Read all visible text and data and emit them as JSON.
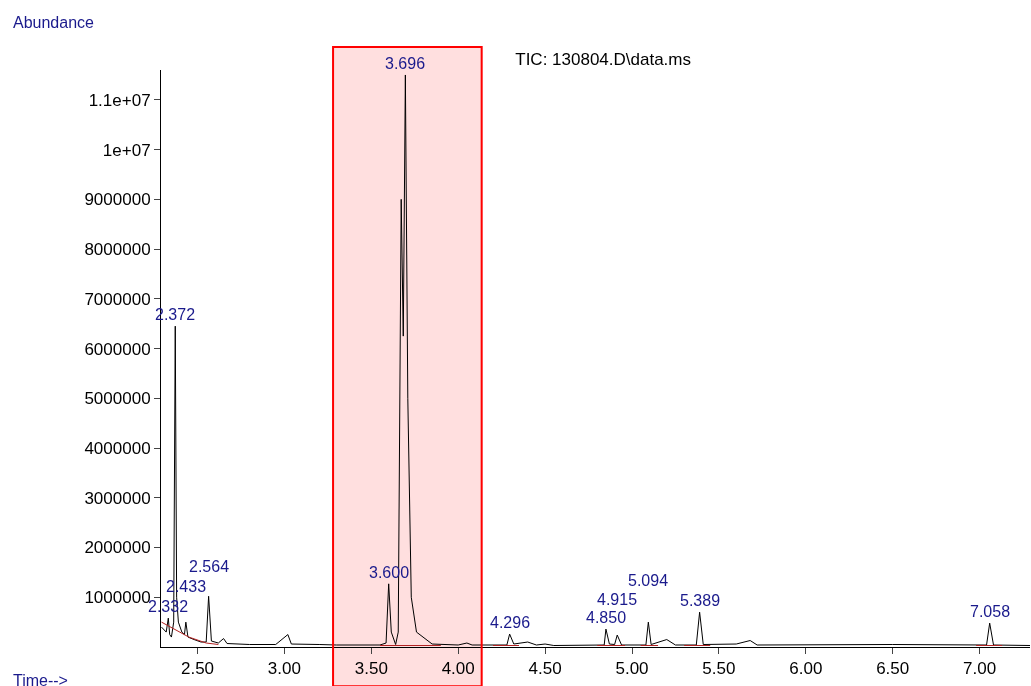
{
  "chart_data": {
    "type": "line",
    "title": "TIC: 130804.D\\data.ms",
    "xlabel": "Time-->",
    "ylabel": "Abundance",
    "series": [
      {
        "color": "#000000",
        "x": [
          2.293,
          2.32,
          2.332,
          2.34,
          2.35,
          2.363,
          2.372,
          2.38,
          2.39,
          2.41,
          2.425,
          2.433,
          2.445,
          2.48,
          2.52,
          2.55,
          2.564,
          2.58,
          2.62,
          2.65,
          2.67,
          2.8,
          2.95,
          3.02,
          3.04,
          3.2,
          3.3,
          3.55,
          3.585,
          3.6,
          3.615,
          3.64,
          3.655,
          3.672,
          3.684,
          3.696,
          3.71,
          3.73,
          3.76,
          3.85,
          4.0,
          4.05,
          4.08,
          4.28,
          4.296,
          4.32,
          4.4,
          4.45,
          4.5,
          4.55,
          4.84,
          4.85,
          4.87,
          4.9,
          4.915,
          4.94,
          5.08,
          5.094,
          5.11,
          5.2,
          5.25,
          5.37,
          5.389,
          5.41,
          5.6,
          5.68,
          5.72,
          6.5,
          7.04,
          7.058,
          7.08,
          7.29
        ],
        "values": [
          400000,
          300000,
          580000,
          250000,
          200000,
          500000,
          6450000,
          1000000,
          500000,
          300000,
          250000,
          500000,
          200000,
          150000,
          100000,
          100000,
          1020000,
          120000,
          80000,
          170000,
          70000,
          50000,
          50000,
          250000,
          60000,
          50000,
          40000,
          40000,
          80000,
          1270000,
          300000,
          50000,
          300000,
          9000000,
          6250000,
          11500000,
          5000000,
          1000000,
          300000,
          60000,
          40000,
          80000,
          40000,
          40000,
          260000,
          60000,
          100000,
          40000,
          60000,
          30000,
          40000,
          360000,
          60000,
          50000,
          240000,
          40000,
          40000,
          500000,
          50000,
          150000,
          40000,
          40000,
          700000,
          50000,
          60000,
          130000,
          40000,
          50000,
          40000,
          480000,
          40000,
          30000
        ]
      },
      {
        "color": "#b22222",
        "x": [
          2.293,
          2.45,
          2.55,
          2.62,
          3.0,
          3.55,
          3.9,
          4.05,
          4.2,
          4.35,
          4.6,
          4.8,
          4.96,
          5.0,
          5.05,
          5.15,
          5.2,
          5.3,
          5.45,
          6.0,
          6.98,
          7.13
        ],
        "values": [
          500000,
          200000,
          80000,
          50000,
          null,
          30000,
          30000,
          null,
          30000,
          30000,
          null,
          30000,
          30000,
          null,
          30000,
          30000,
          null,
          30000,
          30000,
          null,
          30000,
          30000
        ]
      }
    ],
    "xlim": [
      2.29,
      7.29
    ],
    "xticks": [
      {
        "value": 2.5,
        "label": "2.50"
      },
      {
        "value": 3.0,
        "label": "3.00"
      },
      {
        "value": 3.5,
        "label": "3.50"
      },
      {
        "value": 4.0,
        "label": "4.00"
      },
      {
        "value": 4.5,
        "label": "4.50"
      },
      {
        "value": 5.0,
        "label": "5.00"
      },
      {
        "value": 5.5,
        "label": "5.50"
      },
      {
        "value": 6.0,
        "label": "6.00"
      },
      {
        "value": 6.5,
        "label": "6.50"
      },
      {
        "value": 7.0,
        "label": "7.00"
      }
    ],
    "ylim": [
      0,
      11600000
    ],
    "yticks": [
      1000000,
      2000000,
      3000000,
      4000000,
      5000000,
      6000000,
      7000000,
      8000000,
      9000000,
      {
        "value": 10000000,
        "label": "1e+07"
      },
      {
        "value": 11000000,
        "label": "1.1e+07"
      }
    ],
    "grid": false,
    "marker": "none",
    "line_style": "solid",
    "bands": [
      {
        "axis": "x",
        "from": 3.28,
        "to": 4.135,
        "color": "#ff0000"
      }
    ],
    "annotations": [
      {
        "text": "2.332",
        "x": 2.332,
        "y": 580000
      },
      {
        "text": "2.372",
        "x": 2.372,
        "y": 6450000
      },
      {
        "text": "2.433",
        "x": 2.433,
        "y": 500000
      },
      {
        "text": "2.564",
        "x": 2.564,
        "y": 1020000
      },
      {
        "text": "3.600",
        "x": 3.6,
        "y": 1270000
      },
      {
        "text": "3.696",
        "x": 3.696,
        "y": 11500000
      },
      {
        "text": "4.296",
        "x": 4.296,
        "y": 260000
      },
      {
        "text": "4.850",
        "x": 4.85,
        "y": 360000
      },
      {
        "text": "4.915",
        "x": 4.915,
        "y": 240000
      },
      {
        "text": "5.094",
        "x": 5.094,
        "y": 500000
      },
      {
        "text": "5.389",
        "x": 5.389,
        "y": 700000
      },
      {
        "text": "7.058",
        "x": 7.058,
        "y": 480000
      }
    ]
  }
}
